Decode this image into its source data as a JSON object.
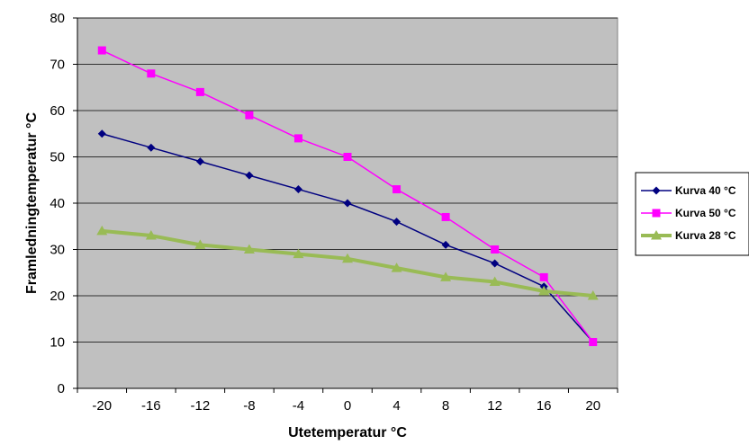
{
  "chart_data": {
    "type": "line",
    "xlabel": "Utetemperatur °C",
    "ylabel": "Framledningtemperatur °C",
    "x": [
      -20,
      -16,
      -12,
      -8,
      -4,
      0,
      4,
      8,
      12,
      16,
      20
    ],
    "xticks": [
      "-20",
      "-16",
      "-12",
      "-8",
      "-4",
      "0",
      "4",
      "8",
      "12",
      "16",
      "20"
    ],
    "yticks": [
      "0",
      "10",
      "20",
      "30",
      "40",
      "50",
      "60",
      "70",
      "80"
    ],
    "ylim": [
      0,
      80
    ],
    "grid": true,
    "legend_position": "right",
    "plot_background": "#c0c0c0",
    "series": [
      {
        "name": "Kurva 40 °C",
        "color": "#000080",
        "marker": "diamond",
        "width": 1.5,
        "values": [
          55,
          52,
          49,
          46,
          43,
          40,
          36,
          31,
          27,
          22,
          10
        ]
      },
      {
        "name": "Kurva 50 °C",
        "color": "#ff00ff",
        "marker": "square",
        "width": 1.5,
        "values": [
          73,
          68,
          64,
          59,
          54,
          50,
          43,
          37,
          30,
          24,
          10
        ]
      },
      {
        "name": "Kurva 28 °C",
        "color": "#99bb55",
        "marker": "triangle",
        "width": 4,
        "values": [
          34,
          33,
          31,
          30,
          29,
          28,
          26,
          24,
          23,
          21,
          20
        ]
      }
    ]
  }
}
